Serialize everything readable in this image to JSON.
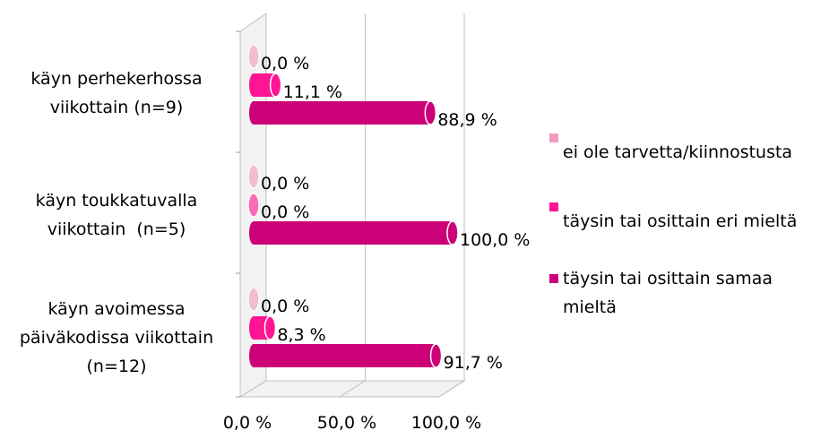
{
  "chart_data": {
    "type": "bar3d",
    "categories": [
      "käyn perhekerhossa viikottain (n=9)",
      "käyn toukkatuvalla viikottain  (n=5)",
      "käyn avoimessa päiväkodissa viikottain  (n=12)"
    ],
    "series": [
      {
        "name": "ei ole tarvetta/kiinnostusta",
        "color": "#f29ac0",
        "values": [
          0,
          0,
          0
        ],
        "value_labels": [
          "0,0 %",
          "0,0 %",
          "0,0 %"
        ]
      },
      {
        "name": "täysin tai osittain eri mieltä",
        "color": "#ff1493",
        "values": [
          11.1,
          0,
          8.3
        ],
        "value_labels": [
          "11,1 %",
          "0,0 %",
          "8,3 %"
        ]
      },
      {
        "name": "täysin tai osittain samaa mieltä",
        "color": "#cc0077",
        "values": [
          88.9,
          100,
          91.7
        ],
        "value_labels": [
          "88,9 %",
          "100,0 %",
          "91,7 %"
        ]
      }
    ],
    "xlim": [
      0,
      100
    ],
    "xticks": [
      {
        "value": 0,
        "label": "0,0 %"
      },
      {
        "value": 50,
        "label": "50,0 %"
      },
      {
        "value": 100,
        "label": "100,0 %"
      }
    ],
    "grid": true,
    "legend": "right"
  }
}
